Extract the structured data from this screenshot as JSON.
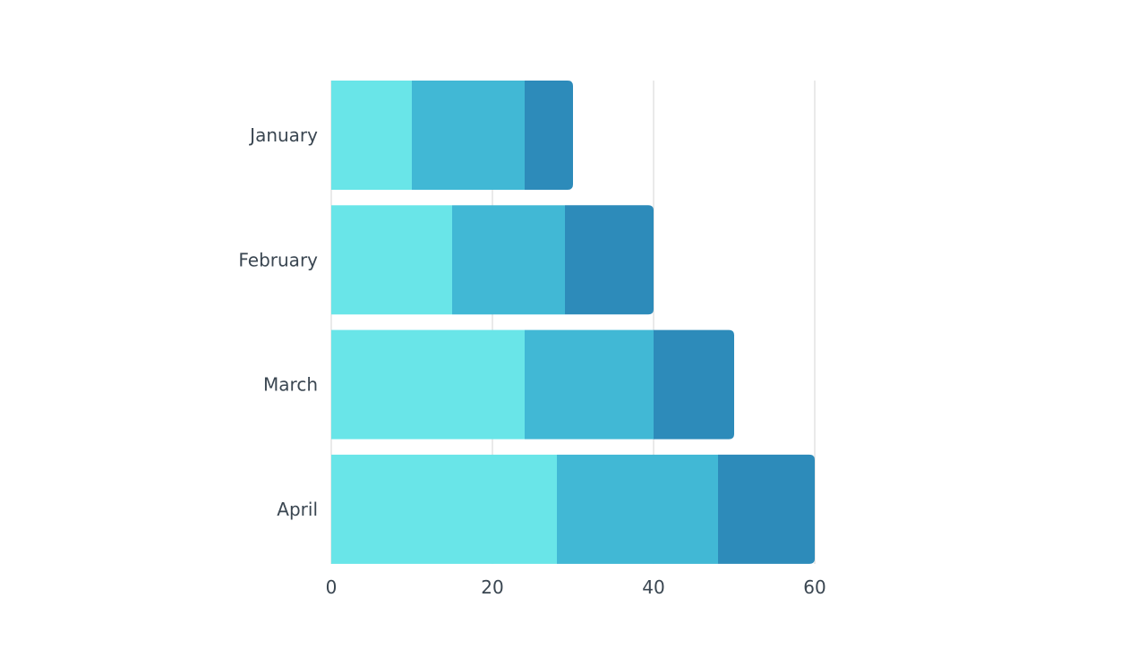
{
  "chart_data": {
    "type": "bar",
    "orientation": "horizontal",
    "stacked": true,
    "categories": [
      "January",
      "February",
      "March",
      "April"
    ],
    "series": [
      {
        "color": "#69e5e8",
        "values": [
          10,
          15,
          24,
          28
        ]
      },
      {
        "color": "#41b8d5",
        "values": [
          14,
          14,
          16,
          20
        ]
      },
      {
        "color": "#2d8bba",
        "values": [
          6,
          11,
          10,
          12
        ]
      }
    ],
    "xticks": [
      0,
      20,
      40,
      60
    ],
    "xlim": [
      0,
      60
    ],
    "title": "",
    "xlabel": "",
    "ylabel": "",
    "grid": "vertical",
    "grid_color": "#d4d4d4",
    "legend": "none"
  }
}
